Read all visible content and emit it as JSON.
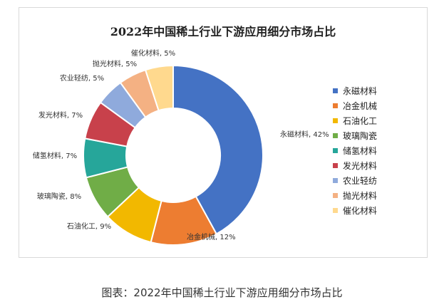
{
  "caption": "图表：2022年中国稀土行业下游应用细分市场占比",
  "chart_data": {
    "type": "pie",
    "title": "2022年中国稀土行业下游应用细分市场占比",
    "legend_position": "right",
    "slices": [
      {
        "name": "永磁材料",
        "value": 42,
        "label": "永磁材料, 42%",
        "color": "#4472C4"
      },
      {
        "name": "冶金机械",
        "value": 12,
        "label": "冶金机械, 12%",
        "color": "#ED7D31"
      },
      {
        "name": "石油化工",
        "value": 9,
        "label": "石油化工, 9%",
        "color": "#F2B800"
      },
      {
        "name": "玻璃陶瓷",
        "value": 8,
        "label": "玻璃陶瓷, 8%",
        "color": "#70AD47"
      },
      {
        "name": "储氢材料",
        "value": 7,
        "label": "储氢材料, 7%",
        "color": "#26A69A"
      },
      {
        "name": "发光材料",
        "value": 7,
        "label": "发光材料, 7%",
        "color": "#C8414B"
      },
      {
        "name": "农业轻纺",
        "value": 5,
        "label": "农业轻纺, 5%",
        "color": "#8FAADC"
      },
      {
        "name": "抛光材料",
        "value": 5,
        "label": "抛光材料, 5%",
        "color": "#F4B183"
      },
      {
        "name": "催化材料",
        "value": 5,
        "label": "催化材料, 5%",
        "color": "#FFD98E"
      }
    ]
  }
}
